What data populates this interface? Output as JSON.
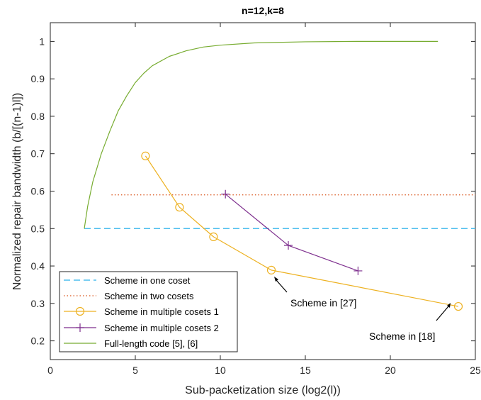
{
  "chart_data": {
    "type": "line",
    "title": "n=12,k=8",
    "xlabel": "Sub-packetization size (log2(l))",
    "ylabel": "Normalized repair bandwidth (b/[(n-1)l])",
    "xlim": [
      0,
      25
    ],
    "ylim": [
      0.15,
      1.05
    ],
    "xticks": [
      0,
      5,
      10,
      15,
      20,
      25
    ],
    "yticks": [
      0.2,
      0.3,
      0.4,
      0.5,
      0.6,
      0.7,
      0.8,
      0.9,
      1
    ],
    "ytick_labels": [
      "0.2",
      "0.3",
      "0.4",
      "0.5",
      "0.6",
      "0.7",
      "0.8",
      "0.9",
      "1"
    ],
    "grid": false,
    "legend_position": "bottom-left",
    "series": [
      {
        "name": "Scheme in one coset",
        "color": "#4DBEEE",
        "style": "dashed",
        "marker": "none",
        "x": [
          2,
          25
        ],
        "y": [
          0.5,
          0.5
        ]
      },
      {
        "name": "Scheme in two cosets",
        "color": "#D95319",
        "style": "dotted",
        "marker": "none",
        "x": [
          3.6,
          25
        ],
        "y": [
          0.59,
          0.59
        ]
      },
      {
        "name": "Scheme in multiple cosets 1",
        "color": "#EDB120",
        "style": "solid",
        "marker": "circle",
        "x": [
          5.6,
          7.6,
          9.6,
          13,
          24
        ],
        "y": [
          0.694,
          0.557,
          0.478,
          0.389,
          0.292
        ]
      },
      {
        "name": "Scheme in multiple cosets 2",
        "color": "#7E2F8E",
        "style": "solid",
        "marker": "plus",
        "x": [
          10.3,
          14,
          18.1
        ],
        "y": [
          0.592,
          0.455,
          0.387
        ]
      },
      {
        "name": "Full-length code [5], [6]",
        "color": "#77AC30",
        "style": "solid",
        "marker": "none",
        "x": [
          2,
          2.2,
          2.5,
          3.0,
          3.5,
          4.0,
          4.5,
          5.0,
          5.5,
          6.0,
          7.0,
          8.0,
          9.0,
          10.0,
          12.0,
          15.0,
          18.0,
          22.8
        ],
        "y": [
          0.5,
          0.56,
          0.625,
          0.7,
          0.76,
          0.815,
          0.855,
          0.89,
          0.915,
          0.935,
          0.96,
          0.975,
          0.985,
          0.99,
          0.996,
          0.999,
          1.0,
          1.0
        ]
      }
    ],
    "annotations": [
      {
        "text": "Scheme in [27]",
        "arrow_to": [
          13,
          0.389
        ]
      },
      {
        "text": "Scheme in [18]",
        "arrow_to": [
          24,
          0.292
        ]
      }
    ]
  }
}
